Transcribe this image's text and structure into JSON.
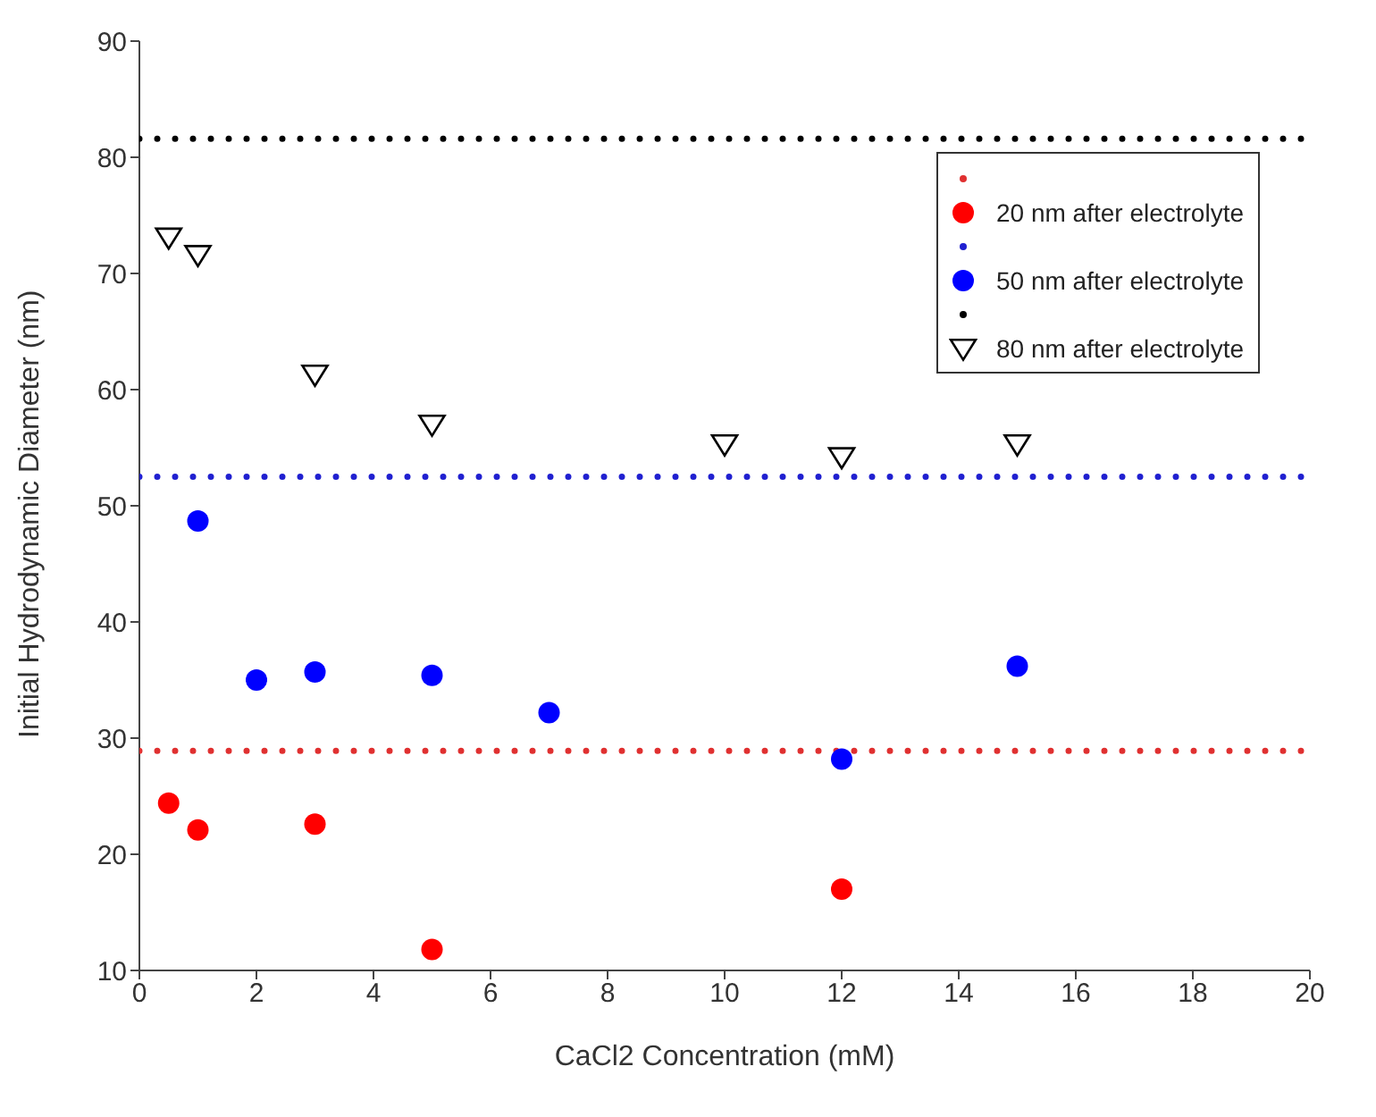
{
  "chart_data": {
    "type": "scatter",
    "xlabel": "CaCl2 Concentration (mM)",
    "ylabel": "Initial Hydrodynamic Diameter (nm)",
    "xlim": [
      0,
      20
    ],
    "xticks": [
      0,
      2,
      4,
      6,
      8,
      10,
      12,
      14,
      16,
      18,
      20
    ],
    "ylim": [
      10,
      90
    ],
    "yticks": [
      10,
      20,
      30,
      40,
      50,
      60,
      70,
      80,
      90
    ],
    "grid": false,
    "legend": "top right",
    "series": [
      {
        "type": "line",
        "color": "#e03030",
        "line_style": "dotted",
        "marker": "none",
        "x": [
          0,
          20
        ],
        "values": [
          28.9,
          28.9
        ]
      },
      {
        "name": "20 nm after electrolyte",
        "color": "#ff0000",
        "marker": "circle",
        "x": [
          0.5,
          1,
          3,
          5,
          12
        ],
        "values": [
          24.4,
          22.1,
          22.6,
          11.8,
          17.0
        ]
      },
      {
        "type": "line",
        "color": "#2020d0",
        "line_style": "dotted",
        "marker": "none",
        "x": [
          0,
          20
        ],
        "values": [
          52.5,
          52.5
        ]
      },
      {
        "name": "50 nm after electrolyte",
        "color": "#0000ff",
        "marker": "circle",
        "x": [
          1,
          2,
          3,
          5,
          7,
          12,
          15
        ],
        "values": [
          48.7,
          35.0,
          35.7,
          35.4,
          32.2,
          28.2,
          36.2
        ]
      },
      {
        "type": "line",
        "color": "#000000",
        "line_style": "dotted",
        "marker": "none",
        "x": [
          0,
          20
        ],
        "values": [
          81.6,
          81.6
        ]
      },
      {
        "name": "80 nm after electrolyte",
        "color": "#000000",
        "marker": "triangle",
        "x": [
          0.5,
          1,
          3,
          5,
          10,
          12,
          15
        ],
        "values": [
          73.1,
          71.6,
          61.3,
          57.0,
          55.3,
          54.2,
          55.3
        ]
      }
    ]
  }
}
